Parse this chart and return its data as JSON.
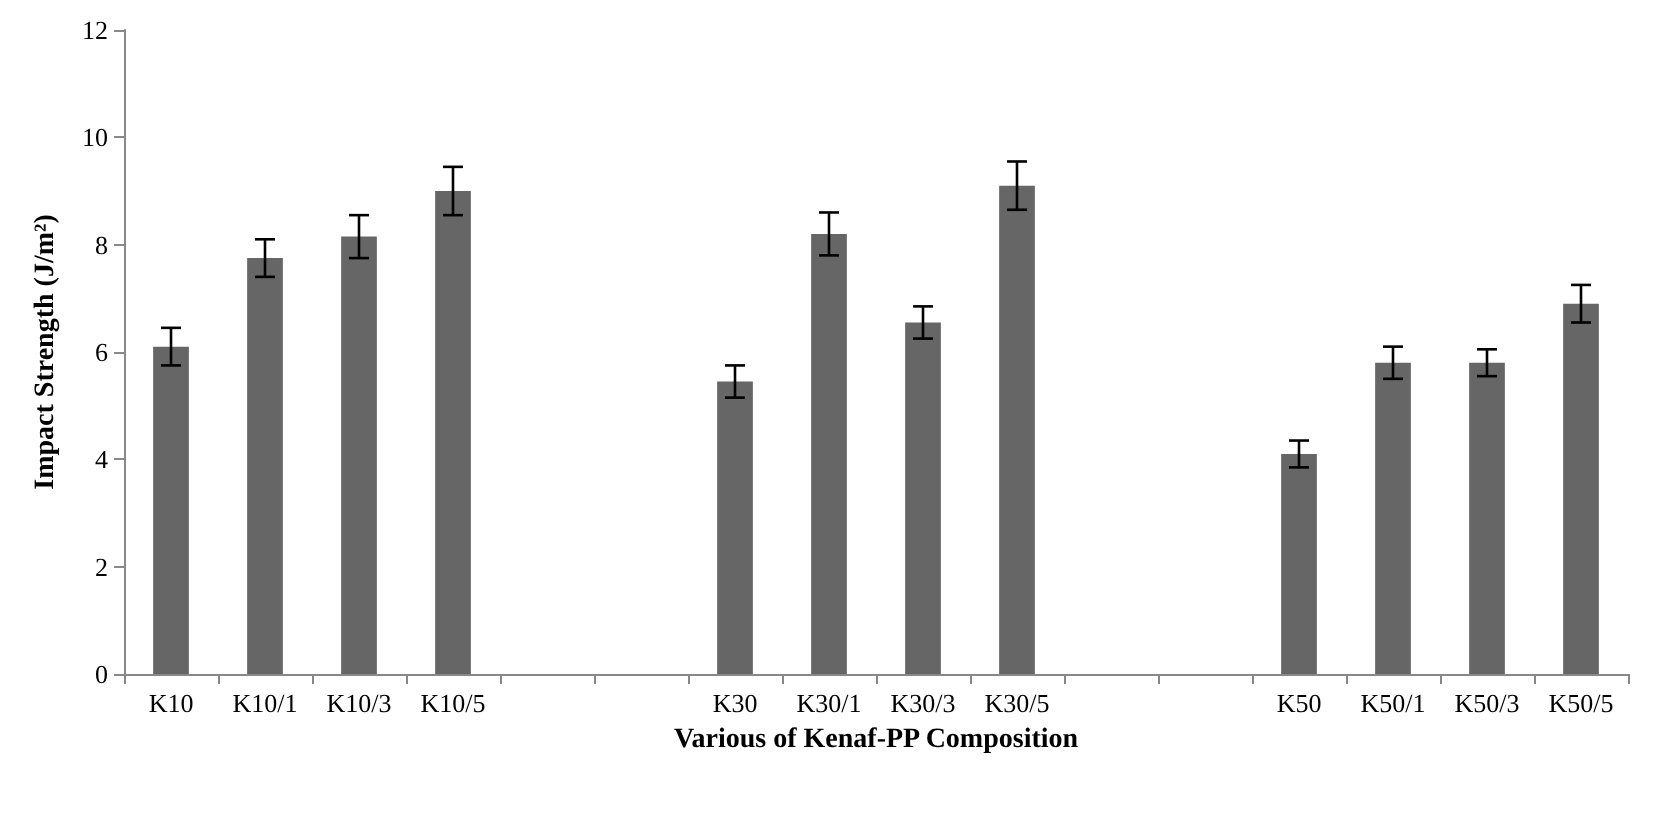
{
  "chart_data": {
    "type": "bar",
    "xlabel": "Various of Kenaf-PP Composition",
    "ylabel": "Impact Strength (J/m²)",
    "categories": [
      "K10",
      "K10/1",
      "K10/3",
      "K10/5",
      null,
      null,
      "K30",
      "K30/1",
      "K30/3",
      "K30/5",
      null,
      null,
      "K50",
      "K50/1",
      "K50/3",
      "K50/5"
    ],
    "values": [
      6.1,
      7.75,
      8.15,
      9.0,
      null,
      null,
      5.45,
      8.2,
      6.55,
      9.1,
      null,
      null,
      4.1,
      5.8,
      5.8,
      6.9
    ],
    "errors": [
      0.35,
      0.35,
      0.4,
      0.45,
      null,
      null,
      0.3,
      0.4,
      0.3,
      0.45,
      null,
      null,
      0.25,
      0.3,
      0.25,
      0.35
    ],
    "color": "#666666",
    "ylim": [
      0,
      12
    ],
    "yticks": [
      0,
      2,
      4,
      6,
      8,
      10,
      12
    ],
    "grid": false
  }
}
